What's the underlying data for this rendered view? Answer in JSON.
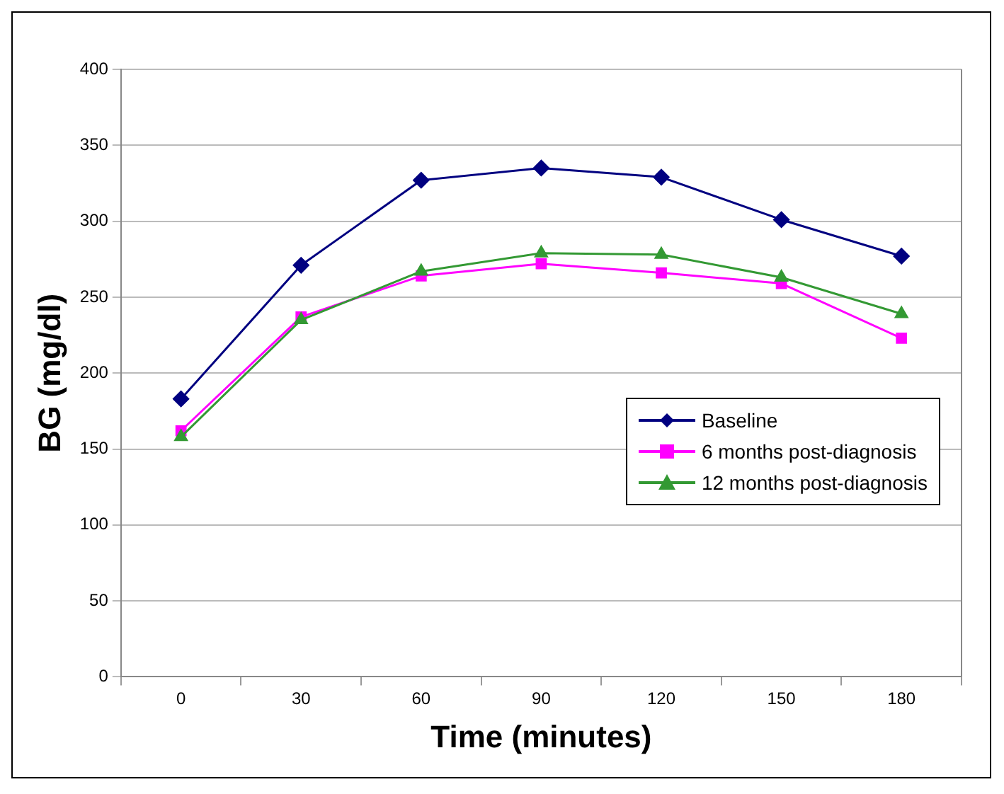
{
  "chart_data": {
    "type": "line",
    "xlabel": "Time (minutes)",
    "ylabel": "BG (mg/dl)",
    "categories": [
      "0",
      "30",
      "60",
      "90",
      "120",
      "150",
      "180"
    ],
    "series": [
      {
        "name": "Baseline",
        "color": "#000080",
        "marker": "diamond",
        "values": [
          183,
          271,
          327,
          335,
          329,
          301,
          277
        ]
      },
      {
        "name": "6 months post-diagnosis",
        "color": "#ff00ff",
        "marker": "square",
        "values": [
          162,
          237,
          264,
          272,
          266,
          259,
          223
        ]
      },
      {
        "name": "12 months post-diagnosis",
        "color": "#339933",
        "marker": "triangle",
        "values": [
          158,
          235,
          267,
          279,
          278,
          263,
          239
        ]
      }
    ],
    "ylim": [
      0,
      400
    ],
    "yticks": [
      0,
      50,
      100,
      150,
      200,
      250,
      300,
      350,
      400
    ],
    "grid": "y",
    "legend": "right"
  }
}
